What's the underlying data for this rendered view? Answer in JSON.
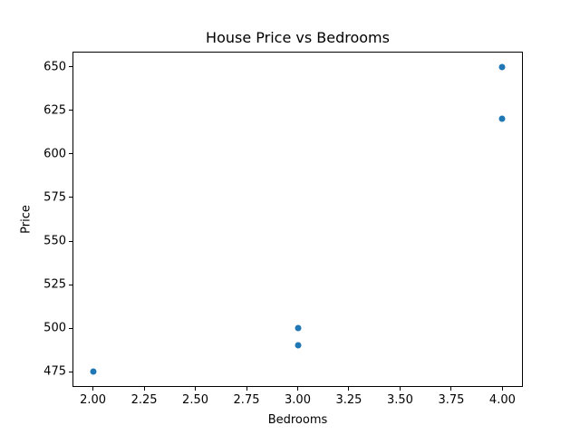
{
  "chart_data": {
    "type": "scatter",
    "title": "House Price vs Bedrooms",
    "xlabel": "Bedrooms",
    "ylabel": "Price",
    "x": [
      2,
      3,
      3,
      4,
      4
    ],
    "y": [
      475,
      490,
      500,
      620,
      650
    ],
    "xlim": [
      1.9,
      4.1
    ],
    "ylim": [
      466.25,
      658.75
    ],
    "x_tick_labels": [
      "2.00",
      "2.25",
      "2.50",
      "2.75",
      "3.00",
      "3.25",
      "3.50",
      "3.75",
      "4.00"
    ],
    "y_tick_labels": [
      "475",
      "500",
      "525",
      "550",
      "575",
      "600",
      "625",
      "650"
    ],
    "marker_color": "#1f77b4",
    "axis_color": "#000000",
    "background_color": "#ffffff",
    "grid": false,
    "legend_position": "none"
  }
}
